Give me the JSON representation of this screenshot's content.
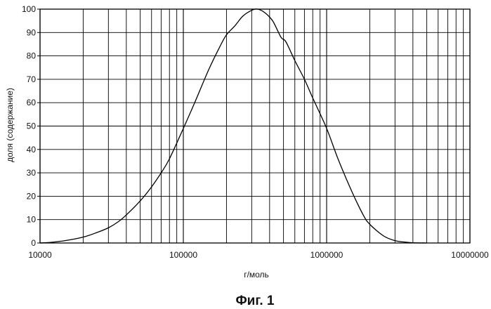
{
  "chart_data": {
    "type": "line",
    "xscale": "log",
    "xlim": [
      10000,
      10000000
    ],
    "ylim": [
      0,
      100
    ],
    "grid": true,
    "xlabel": "г/моль",
    "ylabel": "доля (содержание)",
    "caption": "Фиг. 1",
    "x_ticks": [
      10000,
      100000,
      1000000,
      10000000
    ],
    "x_tick_labels": [
      "10000",
      "100000",
      "1000000",
      "10000000"
    ],
    "y_ticks": [
      0,
      10,
      20,
      30,
      40,
      50,
      60,
      70,
      80,
      90,
      100
    ],
    "y_tick_labels": [
      "0",
      "10",
      "20",
      "30",
      "40",
      "50",
      "60",
      "70",
      "80",
      "90",
      "100"
    ],
    "series": [
      {
        "x": [
          10000,
          12000,
          15000,
          20000,
          25000,
          30000,
          35000,
          40000,
          50000,
          60000,
          70000,
          80000,
          100000,
          120000,
          150000,
          180000,
          200000,
          230000,
          260000,
          300000,
          330000,
          370000,
          420000,
          480000,
          520000,
          600000,
          700000,
          800000,
          1000000,
          1200000,
          1500000,
          1800000,
          2000000,
          2500000,
          3000000,
          3500000,
          4000000,
          5000000
        ],
        "y": [
          0,
          0.3,
          1,
          2.5,
          4.5,
          6.5,
          9,
          12,
          18,
          24,
          30,
          36,
          49,
          60,
          74,
          84,
          89,
          93,
          97,
          99.5,
          100,
          98.5,
          95,
          88,
          86,
          78,
          70,
          62,
          49,
          36,
          22,
          12,
          8,
          3,
          1,
          0.4,
          0.1,
          0
        ]
      }
    ]
  }
}
